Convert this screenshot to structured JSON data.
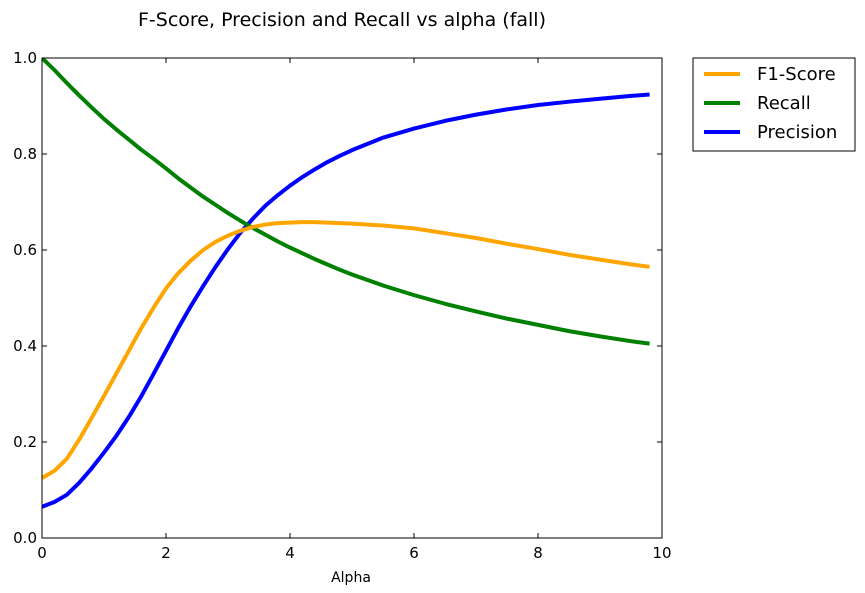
{
  "chart_data": {
    "type": "line",
    "title": "F-Score, Precision and Recall vs alpha (fall)",
    "xlabel": "Alpha",
    "ylabel": "",
    "xlim": [
      0,
      10
    ],
    "ylim": [
      0,
      1.0
    ],
    "xticks": [
      "0",
      "2",
      "4",
      "6",
      "8",
      "10"
    ],
    "yticks": [
      "0.0",
      "0.2",
      "0.4",
      "0.6",
      "0.8",
      "1.0"
    ],
    "grid": false,
    "legend_position": "outside-right-top",
    "x": [
      0,
      0.2,
      0.4,
      0.6,
      0.8,
      1.0,
      1.2,
      1.4,
      1.6,
      1.8,
      2.0,
      2.2,
      2.4,
      2.6,
      2.8,
      3.0,
      3.2,
      3.4,
      3.6,
      3.8,
      4.0,
      4.2,
      4.4,
      4.6,
      4.8,
      5.0,
      5.5,
      6.0,
      6.5,
      7.0,
      7.5,
      8.0,
      8.5,
      9.0,
      9.5,
      9.8
    ],
    "series": [
      {
        "name": "F1-Score",
        "color": "#ffa500",
        "values": [
          0.125,
          0.14,
          0.165,
          0.205,
          0.25,
          0.296,
          0.343,
          0.39,
          0.437,
          0.48,
          0.52,
          0.552,
          0.578,
          0.6,
          0.617,
          0.63,
          0.64,
          0.648,
          0.653,
          0.656,
          0.657,
          0.658,
          0.658,
          0.657,
          0.656,
          0.655,
          0.651,
          0.645,
          0.635,
          0.625,
          0.613,
          0.602,
          0.59,
          0.58,
          0.57,
          0.565
        ]
      },
      {
        "name": "Recall",
        "color": "#008000",
        "values": [
          1.0,
          0.975,
          0.948,
          0.922,
          0.897,
          0.873,
          0.851,
          0.83,
          0.809,
          0.79,
          0.77,
          0.749,
          0.73,
          0.711,
          0.694,
          0.677,
          0.661,
          0.646,
          0.632,
          0.618,
          0.605,
          0.593,
          0.581,
          0.57,
          0.559,
          0.549,
          0.526,
          0.506,
          0.488,
          0.472,
          0.457,
          0.444,
          0.431,
          0.42,
          0.41,
          0.405
        ]
      },
      {
        "name": "Precision",
        "color": "#0000ff",
        "values": [
          0.065,
          0.075,
          0.09,
          0.115,
          0.145,
          0.178,
          0.213,
          0.252,
          0.295,
          0.342,
          0.39,
          0.438,
          0.483,
          0.525,
          0.565,
          0.602,
          0.636,
          0.665,
          0.692,
          0.714,
          0.734,
          0.752,
          0.768,
          0.783,
          0.796,
          0.808,
          0.834,
          0.853,
          0.869,
          0.882,
          0.893,
          0.902,
          0.909,
          0.915,
          0.921,
          0.924
        ]
      }
    ]
  }
}
